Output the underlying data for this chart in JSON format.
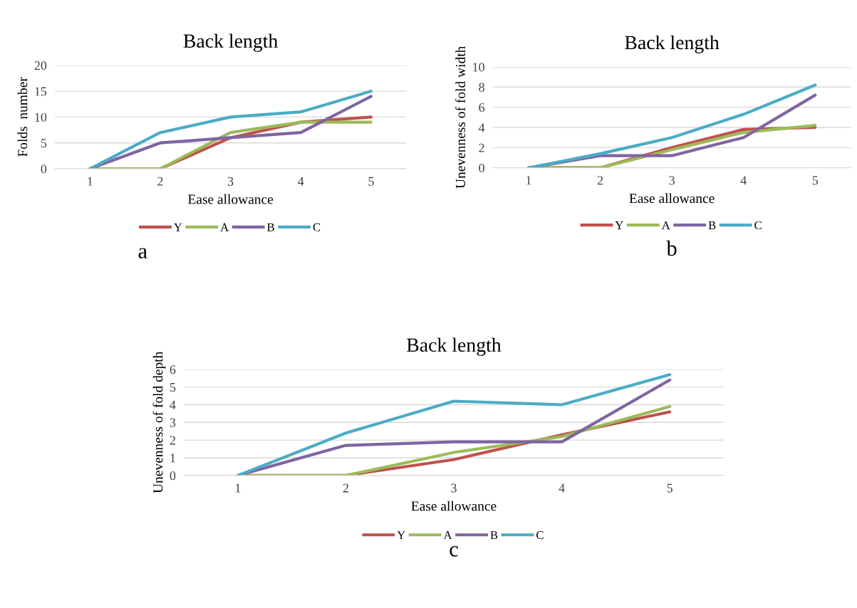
{
  "chart_data": [
    {
      "type": "line",
      "title": "Back length",
      "xlabel": "Ease allowance",
      "ylabel": "Folds  number",
      "categories": [
        "1",
        "2",
        "3",
        "4",
        "5"
      ],
      "ylim": [
        0,
        20
      ],
      "yticks": [
        0,
        5,
        10,
        15,
        20
      ],
      "grid": "y",
      "legend": "bottom",
      "annotations": [
        "a"
      ],
      "series": [
        {
          "name": "Y",
          "color": "#c0504d",
          "values": [
            0,
            0,
            6,
            9,
            10
          ]
        },
        {
          "name": "A",
          "color": "#9bbb59",
          "values": [
            0,
            0,
            7,
            9,
            9
          ]
        },
        {
          "name": "B",
          "color": "#8064a2",
          "values": [
            0,
            5,
            6,
            7,
            14
          ]
        },
        {
          "name": "C",
          "color": "#4bacc6",
          "values": [
            0,
            7,
            10,
            11,
            15
          ]
        }
      ]
    },
    {
      "type": "line",
      "title": "Back length",
      "xlabel": "Ease allowance",
      "ylabel": "Unevenness of fold width",
      "categories": [
        "1",
        "2",
        "3",
        "4",
        "5"
      ],
      "ylim": [
        0,
        10
      ],
      "yticks": [
        0,
        2,
        4,
        6,
        8,
        10
      ],
      "grid": "y",
      "legend": "bottom",
      "annotations": [
        "b"
      ],
      "series": [
        {
          "name": "Y",
          "color": "#c0504d",
          "values": [
            0,
            0,
            2,
            3.8,
            4
          ]
        },
        {
          "name": "A",
          "color": "#9bbb59",
          "values": [
            0,
            0,
            1.8,
            3.5,
            4.2
          ]
        },
        {
          "name": "B",
          "color": "#8064a2",
          "values": [
            0,
            1.2,
            1.2,
            3,
            7.2
          ]
        },
        {
          "name": "C",
          "color": "#4bacc6",
          "values": [
            0,
            1.4,
            3,
            5.3,
            8.2
          ]
        }
      ]
    },
    {
      "type": "line",
      "title": "Back length",
      "xlabel": "Ease allowance",
      "ylabel": "Unevenness of fold depth",
      "categories": [
        "1",
        "2",
        "3",
        "4",
        "5"
      ],
      "ylim": [
        0,
        6
      ],
      "yticks": [
        0,
        1,
        2,
        3,
        4,
        5,
        6
      ],
      "grid": "y",
      "legend": "bottom",
      "annotations": [
        "c"
      ],
      "series": [
        {
          "name": "Y",
          "color": "#c0504d",
          "values": [
            0,
            0,
            0.9,
            2.3,
            3.6
          ]
        },
        {
          "name": "A",
          "color": "#9bbb59",
          "values": [
            0,
            0,
            1.3,
            2.2,
            3.9
          ]
        },
        {
          "name": "B",
          "color": "#8064a2",
          "values": [
            0,
            1.7,
            1.9,
            1.9,
            5.4
          ]
        },
        {
          "name": "C",
          "color": "#4bacc6",
          "values": [
            0,
            2.4,
            4.2,
            4.0,
            5.7
          ]
        }
      ]
    }
  ]
}
